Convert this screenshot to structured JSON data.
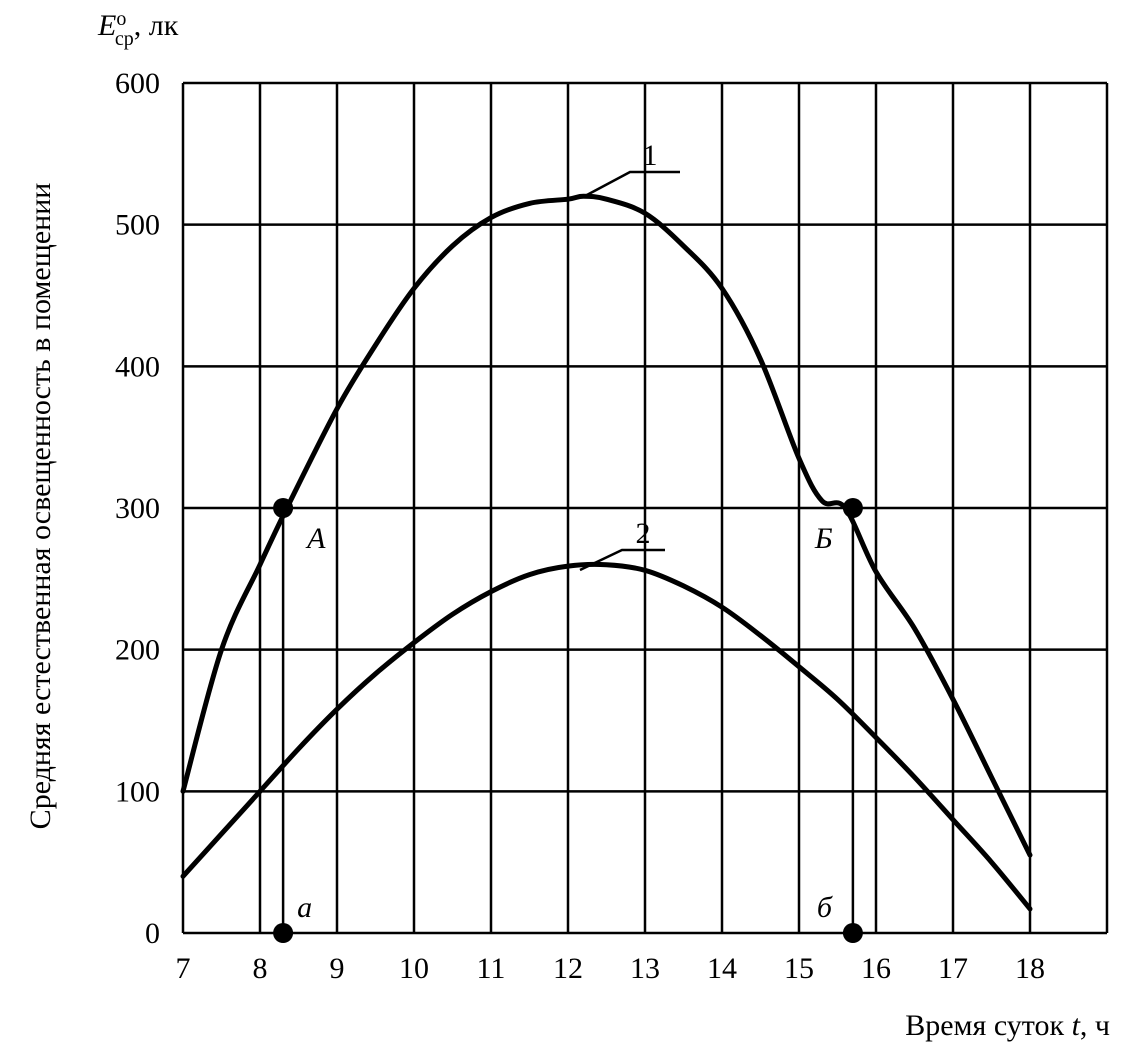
{
  "chart_data": {
    "type": "line",
    "y_unit_symbol": "E",
    "y_unit_sup": "о",
    "y_unit_sub": "ср",
    "y_unit_rest": ", лк",
    "ylabel": "Средняя естественная освещенность в помещении",
    "xlabel_prefix": "Время суток ",
    "xlabel_var": "t",
    "xlabel_suffix": ", ч",
    "xlim": [
      7,
      19
    ],
    "ylim": [
      0,
      600
    ],
    "grid": true,
    "x_ticks": [
      "7",
      "8",
      "9",
      "10",
      "11",
      "12",
      "13",
      "14",
      "15",
      "16",
      "17",
      "18"
    ],
    "y_ticks": [
      "0",
      "100",
      "200",
      "300",
      "400",
      "500",
      "600"
    ],
    "series": [
      {
        "name": "1",
        "x": [
          7,
          7.5,
          8,
          8.35,
          9,
          9.5,
          10,
          10.5,
          11,
          11.5,
          12,
          12.2,
          12.5,
          13,
          13.5,
          14,
          14.5,
          15,
          15.3,
          15.6,
          16,
          16.5,
          17,
          17.5,
          18
        ],
        "y": [
          100,
          200,
          260,
          300,
          370,
          415,
          455,
          485,
          505,
          515,
          518,
          520,
          518,
          508,
          485,
          455,
          405,
          335,
          305,
          300,
          255,
          215,
          165,
          110,
          55
        ]
      },
      {
        "name": "2",
        "x": [
          7,
          7.5,
          8,
          8.5,
          9,
          9.5,
          10,
          10.5,
          11,
          11.5,
          12,
          12.5,
          13,
          13.5,
          14,
          14.5,
          15,
          15.5,
          16,
          16.5,
          17,
          17.5,
          18
        ],
        "y": [
          40,
          70,
          100,
          130,
          158,
          183,
          205,
          225,
          241,
          253,
          259,
          260,
          256,
          245,
          230,
          210,
          188,
          165,
          138,
          110,
          80,
          50,
          17
        ]
      }
    ],
    "points": [
      {
        "label": "A",
        "x": 8.3,
        "y": 300
      },
      {
        "label": "Б",
        "x": 15.7,
        "y": 300
      },
      {
        "label": "а",
        "x": 8.3,
        "y": 0
      },
      {
        "label": "б",
        "x": 15.7,
        "y": 0
      }
    ]
  }
}
